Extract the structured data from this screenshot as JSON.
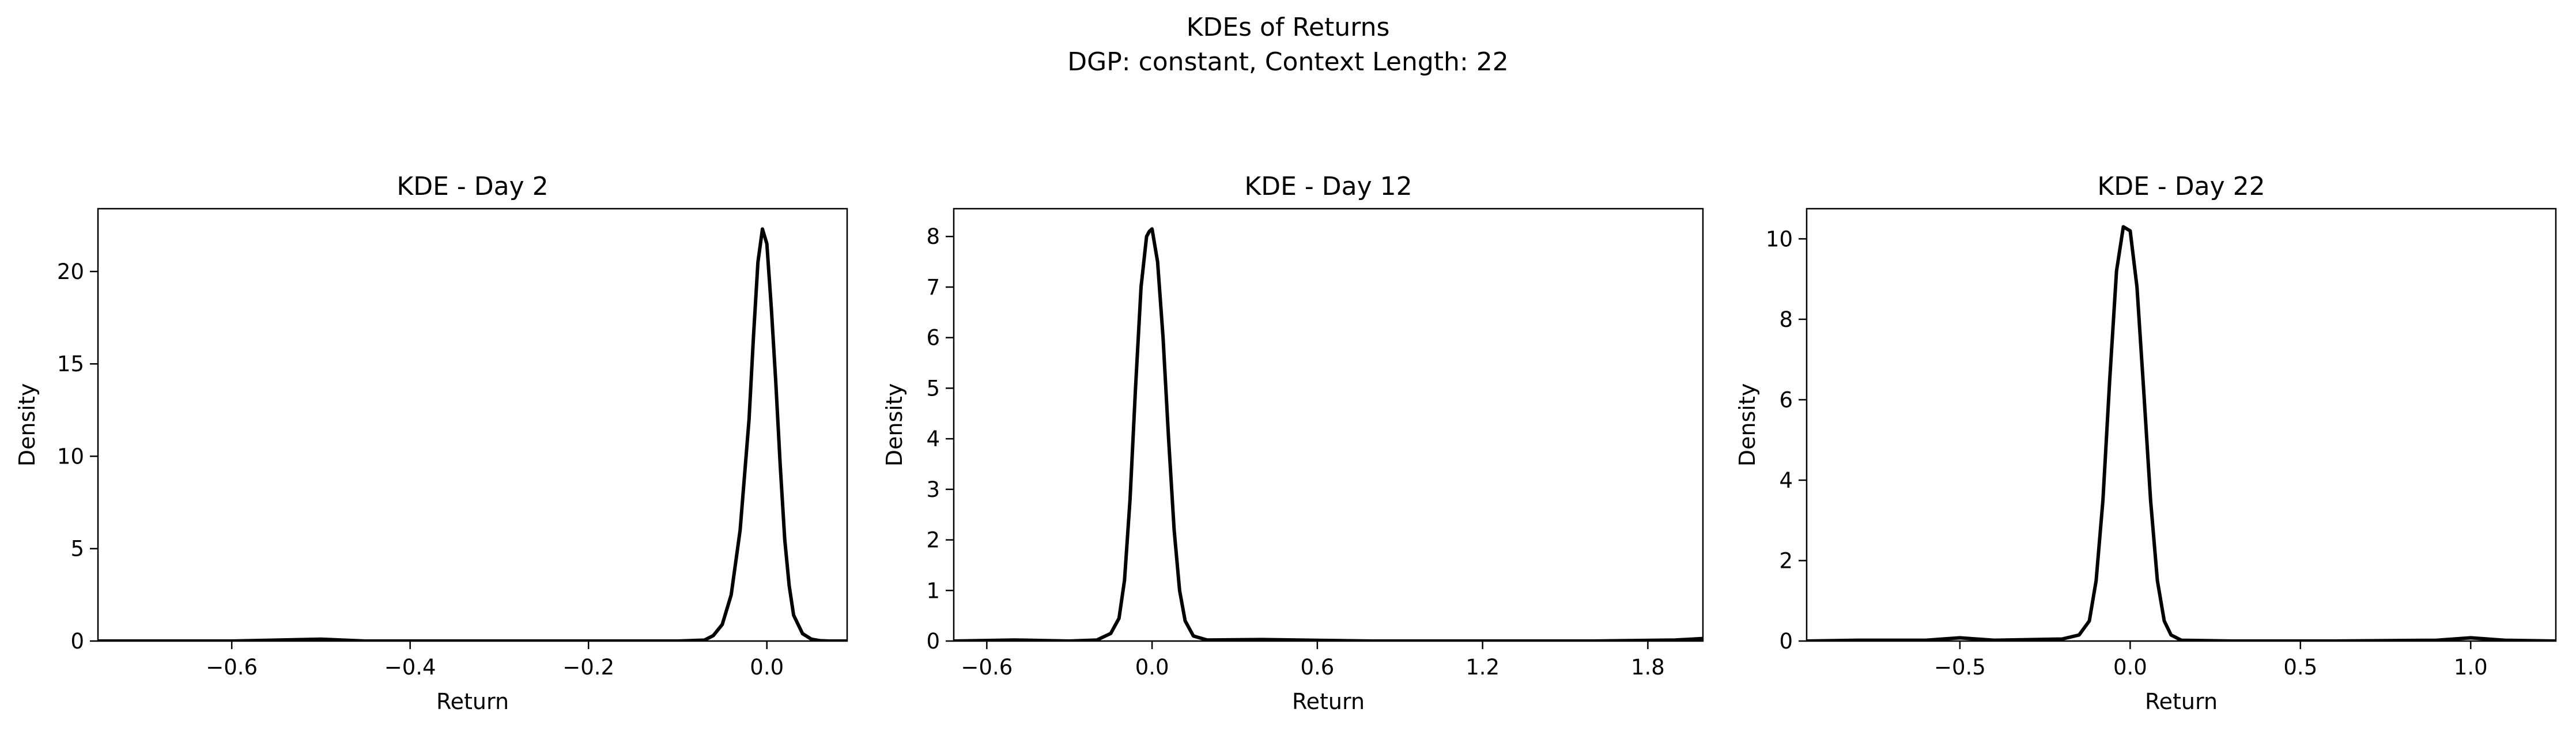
{
  "figure": {
    "title": "KDEs of Returns",
    "subtitle": "DGP: constant, Context Length: 22"
  },
  "chart_data": [
    {
      "type": "line",
      "title": "KDE - Day 2",
      "xlabel": "Return",
      "ylabel": "Density",
      "xlim": [
        -0.75,
        0.09
      ],
      "ylim": [
        0,
        23.4
      ],
      "xticks": [
        -0.6,
        -0.4,
        -0.2,
        0.0
      ],
      "xtick_labels": [
        "−0.6",
        "−0.4",
        "−0.2",
        "0.0"
      ],
      "yticks": [
        0,
        5,
        10,
        15,
        20
      ],
      "ytick_labels": [
        "0",
        "5",
        "10",
        "15",
        "20"
      ],
      "grid": false,
      "line_color": "#000000",
      "series": [
        {
          "x": [
            -0.75,
            -0.6,
            -0.5,
            -0.45,
            -0.3,
            -0.15,
            -0.1,
            -0.07,
            -0.06,
            -0.05,
            -0.04,
            -0.03,
            -0.02,
            -0.015,
            -0.01,
            -0.005,
            0.0,
            0.005,
            0.01,
            0.015,
            0.02,
            0.025,
            0.03,
            0.04,
            0.05,
            0.06,
            0.07,
            0.09
          ],
          "y": [
            0,
            0,
            0.1,
            0,
            0,
            0,
            0,
            0.05,
            0.3,
            0.9,
            2.5,
            6.0,
            12.0,
            16.5,
            20.5,
            22.3,
            21.5,
            18.0,
            14.0,
            9.5,
            5.5,
            3.0,
            1.4,
            0.4,
            0.1,
            0.02,
            0,
            0
          ]
        }
      ]
    },
    {
      "type": "line",
      "title": "KDE - Day 12",
      "xlabel": "Return",
      "ylabel": "Density",
      "xlim": [
        -0.72,
        2.0
      ],
      "ylim": [
        0,
        8.55
      ],
      "xticks": [
        -0.6,
        0.0,
        0.6,
        1.2,
        1.8
      ],
      "xtick_labels": [
        "−0.6",
        "0.0",
        "0.6",
        "1.2",
        "1.8"
      ],
      "yticks": [
        0,
        1,
        2,
        3,
        4,
        5,
        6,
        7,
        8
      ],
      "ytick_labels": [
        "0",
        "1",
        "2",
        "3",
        "4",
        "5",
        "6",
        "7",
        "8"
      ],
      "grid": false,
      "line_color": "#000000",
      "series": [
        {
          "x": [
            -0.72,
            -0.5,
            -0.3,
            -0.2,
            -0.15,
            -0.12,
            -0.1,
            -0.08,
            -0.06,
            -0.04,
            -0.02,
            -0.01,
            0.0,
            0.02,
            0.04,
            0.06,
            0.08,
            0.1,
            0.12,
            0.15,
            0.2,
            0.4,
            0.8,
            1.2,
            1.6,
            1.9,
            2.0
          ],
          "y": [
            0,
            0.02,
            0,
            0.02,
            0.15,
            0.45,
            1.2,
            2.8,
            5.0,
            7.0,
            8.0,
            8.1,
            8.15,
            7.5,
            6.0,
            4.0,
            2.2,
            1.0,
            0.4,
            0.1,
            0.02,
            0.03,
            0,
            0,
            0,
            0.02,
            0.05
          ]
        }
      ]
    },
    {
      "type": "line",
      "title": "KDE - Day 22",
      "xlabel": "Return",
      "ylabel": "Density",
      "xlim": [
        -0.95,
        1.25
      ],
      "ylim": [
        0,
        10.75
      ],
      "xticks": [
        -0.5,
        0.0,
        0.5,
        1.0
      ],
      "xtick_labels": [
        "−0.5",
        "0.0",
        "0.5",
        "1.0"
      ],
      "yticks": [
        0,
        2,
        4,
        6,
        8,
        10
      ],
      "ytick_labels": [
        "0",
        "2",
        "4",
        "6",
        "8",
        "10"
      ],
      "grid": false,
      "line_color": "#000000",
      "series": [
        {
          "x": [
            -0.95,
            -0.8,
            -0.6,
            -0.5,
            -0.4,
            -0.2,
            -0.15,
            -0.12,
            -0.1,
            -0.08,
            -0.06,
            -0.04,
            -0.02,
            0.0,
            0.02,
            0.04,
            0.06,
            0.08,
            0.1,
            0.12,
            0.15,
            0.3,
            0.6,
            0.9,
            1.0,
            1.1,
            1.25
          ],
          "y": [
            0,
            0.02,
            0.02,
            0.08,
            0.02,
            0.05,
            0.15,
            0.5,
            1.5,
            3.5,
            6.5,
            9.2,
            10.3,
            10.2,
            8.8,
            6.2,
            3.5,
            1.5,
            0.5,
            0.15,
            0.02,
            0,
            0,
            0.02,
            0.08,
            0.02,
            0
          ]
        }
      ]
    }
  ]
}
